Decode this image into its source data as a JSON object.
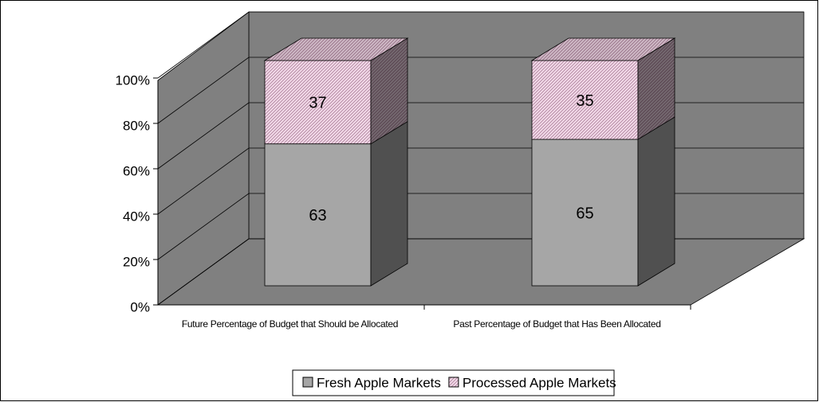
{
  "chart_data": {
    "type": "bar3d_stacked",
    "categories": [
      "Future Percentage of Budget that Should be Allocated",
      "Past Percentage of Budget that Has Been Allocated"
    ],
    "series": [
      {
        "name": "Fresh Apple Markets",
        "color": "#a6a6a6",
        "values": [
          63,
          65
        ]
      },
      {
        "name": "Processed Apple Markets",
        "color": "#f2d9e8",
        "pattern": "hatch",
        "values": [
          37,
          35
        ]
      }
    ],
    "ylim": [
      0,
      100
    ],
    "yticks": [
      {
        "value": 0,
        "label": "0%"
      },
      {
        "value": 20,
        "label": "20%"
      },
      {
        "value": 40,
        "label": "40%"
      },
      {
        "value": 60,
        "label": "60%"
      },
      {
        "value": 80,
        "label": "80%"
      },
      {
        "value": 100,
        "label": "100%"
      }
    ],
    "grid": true,
    "legend": "bottom"
  }
}
